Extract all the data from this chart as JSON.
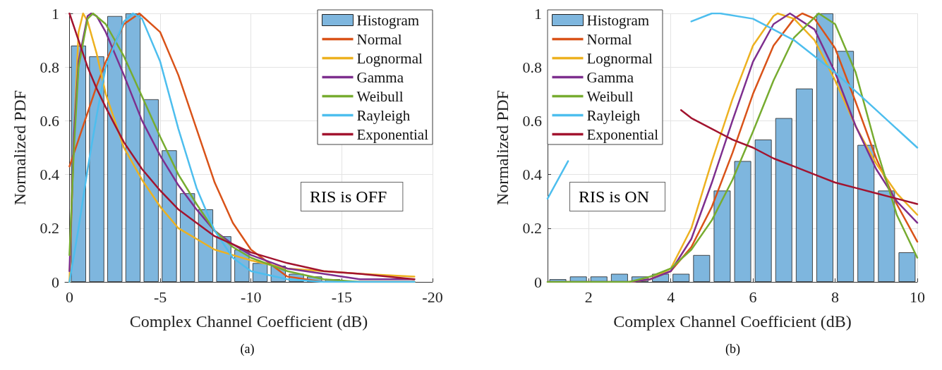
{
  "chart_data": [
    {
      "type": "line",
      "xlabel": "Complex Channel Coefficient (dB)",
      "ylabel": "Normalized PDF",
      "xlim": [
        0.25,
        -20
      ],
      "xticks": [
        0,
        -5,
        -10,
        -15,
        -20
      ],
      "ylim": [
        0,
        1
      ],
      "yticks": [
        0,
        0.2,
        0.4,
        0.6,
        0.8,
        1
      ],
      "grid": true,
      "legend": "top right",
      "marker": "none",
      "line_style": "solid",
      "annotations": [
        "RIS is OFF",
        "(a)"
      ],
      "series": [
        {
          "name": "Histogram",
          "type": "bar",
          "color": "#7eb6de",
          "x": [
            -0.5,
            -1.5,
            -2.5,
            -3.5,
            -4.5,
            -5.5,
            -6.5,
            -7.5,
            -8.5,
            -9.5,
            -10.5,
            -11.5,
            -12.5,
            -13.5,
            -14.5
          ],
          "values": [
            0.88,
            0.84,
            0.99,
            1,
            0.68,
            0.49,
            0.33,
            0.27,
            0.17,
            0.12,
            0.07,
            0.06,
            0.03,
            0.02,
            0.01
          ]
        },
        {
          "name": "Normal",
          "color": "#d95319",
          "x": [
            0,
            -0.5,
            -1,
            -1.5,
            -2,
            -3,
            -3.85,
            -5,
            -6,
            -7,
            -8,
            -9,
            -10,
            -12,
            -14,
            -16,
            -19
          ],
          "values": [
            0.43,
            0.53,
            0.63,
            0.73,
            0.82,
            0.96,
            1,
            0.93,
            0.77,
            0.57,
            0.37,
            0.22,
            0.12,
            0.02,
            0,
            0,
            0
          ]
        },
        {
          "name": "Lognormal",
          "color": "#edb120",
          "x": [
            0,
            -0.25,
            -0.5,
            -0.75,
            -1,
            -1.5,
            -2,
            -3,
            -4,
            -5,
            -6,
            -7,
            -8,
            -9,
            -10,
            -12,
            -14,
            -16,
            -19
          ],
          "values": [
            0,
            0.55,
            0.93,
            1,
            0.97,
            0.85,
            0.7,
            0.5,
            0.38,
            0.28,
            0.2,
            0.16,
            0.12,
            0.1,
            0.08,
            0.05,
            0.04,
            0.03,
            0.02
          ]
        },
        {
          "name": "Gamma",
          "color": "#7e2f8e",
          "x": [
            0,
            -0.25,
            -0.5,
            -1,
            -1.2,
            -1.5,
            -2,
            -3,
            -4,
            -5,
            -6,
            -7,
            -8,
            -9,
            -10,
            -12,
            -14,
            -16,
            -19
          ],
          "values": [
            0.04,
            0.55,
            0.82,
            0.99,
            1,
            0.99,
            0.93,
            0.77,
            0.6,
            0.47,
            0.36,
            0.27,
            0.19,
            0.14,
            0.1,
            0.05,
            0.03,
            0.01,
            0.01
          ]
        },
        {
          "name": "Weibull",
          "color": "#77ac30",
          "x": [
            0,
            -0.25,
            -0.5,
            -1,
            -1.3,
            -2,
            -3,
            -4,
            -5,
            -6,
            -7,
            -8,
            -9,
            -10,
            -12,
            -14,
            -16,
            -19
          ],
          "values": [
            0.1,
            0.5,
            0.8,
            0.98,
            1,
            0.96,
            0.84,
            0.69,
            0.54,
            0.4,
            0.29,
            0.19,
            0.13,
            0.09,
            0.04,
            0.01,
            0,
            0
          ]
        },
        {
          "name": "Rayleigh",
          "color": "#4dbeee",
          "x": [
            0,
            -0.5,
            -1,
            -1.5,
            -2,
            -3,
            -3.5,
            -4,
            -5,
            -6,
            -7,
            -8,
            -9,
            -10,
            -12,
            -14,
            -16,
            -19
          ],
          "values": [
            0,
            0.2,
            0.42,
            0.62,
            0.8,
            0.97,
            1,
            0.98,
            0.82,
            0.57,
            0.35,
            0.19,
            0.09,
            0.04,
            0.01,
            0,
            0,
            0
          ]
        },
        {
          "name": "Exponential",
          "color": "#a2142f",
          "x": [
            0,
            -0.5,
            -1,
            -1.5,
            -2,
            -3,
            -4,
            -5,
            -6,
            -7,
            -8,
            -9,
            -10,
            -12,
            -14,
            -16,
            -19
          ],
          "values": [
            1,
            0.9,
            0.8,
            0.72,
            0.65,
            0.52,
            0.42,
            0.34,
            0.27,
            0.22,
            0.17,
            0.14,
            0.11,
            0.07,
            0.04,
            0.03,
            0.01
          ]
        }
      ]
    },
    {
      "type": "line",
      "xlabel": "Complex Channel Coefficient (dB)",
      "ylabel": "Normalized PDF",
      "xlim": [
        1,
        10
      ],
      "xticks": [
        2,
        4,
        6,
        8,
        10
      ],
      "ylim": [
        0,
        1
      ],
      "yticks": [
        0,
        0.2,
        0.4,
        0.6,
        0.8,
        1
      ],
      "grid": true,
      "legend": "top left",
      "marker": "none",
      "line_style": "solid",
      "annotations": [
        "RIS is ON",
        "(b)"
      ],
      "series": [
        {
          "name": "Histogram",
          "type": "bar",
          "color": "#7eb6de",
          "x": [
            1.25,
            1.75,
            2.25,
            2.75,
            3.25,
            3.75,
            4.25,
            4.75,
            5.25,
            5.75,
            6.25,
            6.75,
            7.25,
            7.75,
            8.25,
            8.75,
            9.25,
            9.75
          ],
          "values": [
            0.01,
            0.02,
            0.02,
            0.03,
            0.02,
            0.03,
            0.03,
            0.1,
            0.34,
            0.45,
            0.53,
            0.61,
            0.72,
            1,
            0.86,
            0.51,
            0.34,
            0.11
          ]
        },
        {
          "name": "Normal",
          "color": "#d95319",
          "x": [
            3,
            3.5,
            4,
            4.5,
            5,
            5.5,
            6,
            6.5,
            7,
            7.2,
            7.5,
            8,
            8.5,
            9,
            9.5,
            10
          ],
          "values": [
            0,
            0.01,
            0.04,
            0.13,
            0.28,
            0.48,
            0.7,
            0.88,
            0.98,
            1,
            0.98,
            0.87,
            0.67,
            0.46,
            0.29,
            0.15
          ]
        },
        {
          "name": "Lognormal",
          "color": "#edb120",
          "x": [
            3,
            3.5,
            4,
            4.5,
            5,
            5.5,
            6,
            6.5,
            6.6,
            7,
            7.5,
            8,
            8.5,
            9,
            9.5,
            10
          ],
          "values": [
            0,
            0.01,
            0.05,
            0.2,
            0.45,
            0.68,
            0.88,
            0.99,
            1,
            0.98,
            0.9,
            0.75,
            0.58,
            0.44,
            0.33,
            0.25
          ]
        },
        {
          "name": "Gamma",
          "color": "#7e2f8e",
          "x": [
            1,
            2,
            3,
            3.5,
            4,
            4.5,
            5,
            5.5,
            6,
            6.5,
            6.9,
            7.5,
            8,
            8.5,
            9,
            9.5,
            10
          ],
          "values": [
            0,
            0,
            0,
            0.01,
            0.04,
            0.16,
            0.37,
            0.6,
            0.82,
            0.96,
            1,
            0.94,
            0.78,
            0.58,
            0.42,
            0.3,
            0.22
          ]
        },
        {
          "name": "Weibull",
          "color": "#77ac30",
          "x": [
            1,
            2,
            3,
            3.5,
            4,
            4.5,
            5,
            5.5,
            6,
            6.5,
            7,
            7.6,
            8,
            8.5,
            9,
            9.5,
            10
          ],
          "values": [
            0,
            0,
            0,
            0.02,
            0.05,
            0.12,
            0.23,
            0.38,
            0.56,
            0.75,
            0.91,
            1,
            0.96,
            0.78,
            0.5,
            0.25,
            0.09
          ]
        },
        {
          "name": "Rayleigh",
          "color": "#4dbeee",
          "x": [
            1,
            1.5,
            2,
            3,
            4,
            4.5,
            5,
            5.2,
            6,
            7,
            8,
            9,
            10
          ],
          "values": [
            0.31,
            0.45,
            null,
            null,
            null,
            0.97,
            1,
            1,
            0.98,
            0.9,
            0.78,
            0.64,
            0.5
          ]
        },
        {
          "name": "Exponential",
          "color": "#a2142f",
          "x": [
            4.25,
            4.5,
            5,
            5.5,
            6,
            6.5,
            7,
            7.5,
            8,
            8.5,
            9,
            9.5,
            10
          ],
          "values": [
            0.64,
            0.61,
            0.57,
            0.53,
            0.5,
            0.46,
            0.43,
            0.4,
            0.37,
            0.35,
            0.33,
            0.31,
            0.29
          ]
        }
      ]
    }
  ]
}
